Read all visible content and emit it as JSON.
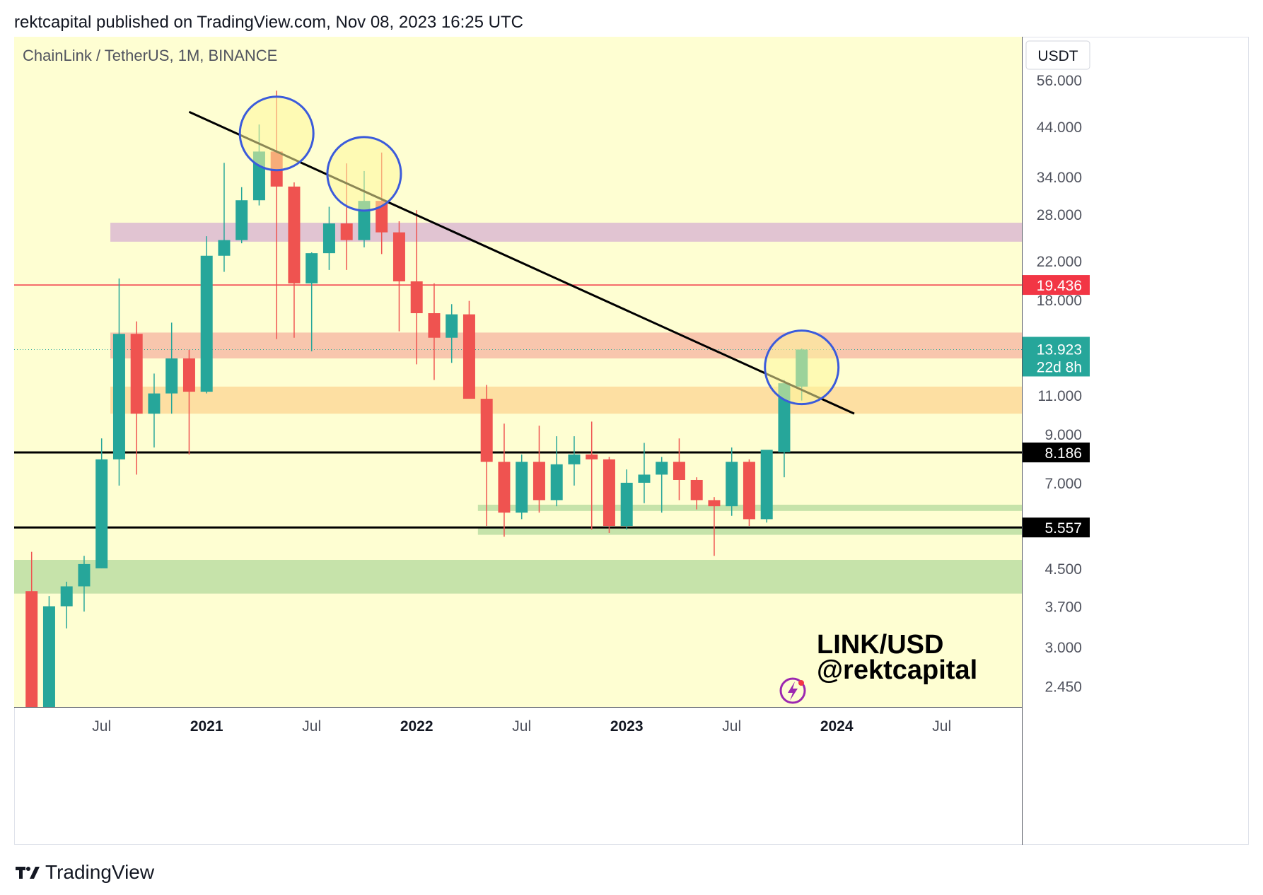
{
  "header": {
    "published": "rektcapital published on TradingView.com, Nov 08, 2023 16:25 UTC"
  },
  "footer": {
    "brand": "TradingView"
  },
  "colors": {
    "background": "#fefed2",
    "up": "#26a69a",
    "down": "#ef5350",
    "trendline": "#000000",
    "circle": "#3b5bdb",
    "zone_purple": "#e1c4d2",
    "zone_salmon": "#f8c6ad",
    "zone_orange": "#fddfa2",
    "zone_green": "#c6e3aa",
    "last_price_tag": "#26a69a",
    "red_level_tag": "#f23645"
  },
  "chart_data": {
    "type": "candlestick",
    "title": "ChainLink / TetherUS, 1M, BINANCE",
    "watermark": [
      "LINK/USD",
      "@rektcapital"
    ],
    "currency": "USDT",
    "y_scale": "log",
    "ylim": [
      2.2,
      70
    ],
    "y_ticks": [
      "56.000",
      "44.000",
      "34.000",
      "28.000",
      "22.000",
      "18.000",
      "11.000",
      "9.000",
      "7.000",
      "4.500",
      "3.700",
      "3.000",
      "2.450"
    ],
    "x_ticks": [
      {
        "label": "Jul",
        "date": "2020-07",
        "bold": false
      },
      {
        "label": "2021",
        "date": "2021-01",
        "bold": true
      },
      {
        "label": "Jul",
        "date": "2021-07",
        "bold": false
      },
      {
        "label": "2022",
        "date": "2022-01",
        "bold": true
      },
      {
        "label": "Jul",
        "date": "2022-07",
        "bold": false
      },
      {
        "label": "2023",
        "date": "2023-01",
        "bold": true
      },
      {
        "label": "Jul",
        "date": "2023-07",
        "bold": false
      },
      {
        "label": "2024",
        "date": "2024-01",
        "bold": true
      },
      {
        "label": "Jul",
        "date": "2024-07",
        "bold": false
      }
    ],
    "candles": [
      {
        "date": "2020-03",
        "o": 4.0,
        "h": 4.9,
        "l": 2.2,
        "c": 2.2
      },
      {
        "date": "2020-04",
        "o": 2.2,
        "h": 3.9,
        "l": 2.2,
        "c": 3.7
      },
      {
        "date": "2020-05",
        "o": 3.7,
        "h": 4.2,
        "l": 3.3,
        "c": 4.1
      },
      {
        "date": "2020-06",
        "o": 4.1,
        "h": 4.8,
        "l": 3.6,
        "c": 4.6
      },
      {
        "date": "2020-07",
        "o": 4.5,
        "h": 8.8,
        "l": 4.5,
        "c": 7.9
      },
      {
        "date": "2020-08",
        "o": 7.9,
        "h": 20.1,
        "l": 6.9,
        "c": 15.1
      },
      {
        "date": "2020-09",
        "o": 15.1,
        "h": 16.1,
        "l": 7.3,
        "c": 10.0
      },
      {
        "date": "2020-10",
        "o": 10.0,
        "h": 12.3,
        "l": 8.4,
        "c": 11.1
      },
      {
        "date": "2020-11",
        "o": 11.1,
        "h": 16.0,
        "l": 10.0,
        "c": 13.3
      },
      {
        "date": "2020-12",
        "o": 13.3,
        "h": 13.9,
        "l": 8.1,
        "c": 11.2
      },
      {
        "date": "2021-01",
        "o": 11.2,
        "h": 25.0,
        "l": 11.1,
        "c": 22.6
      },
      {
        "date": "2021-02",
        "o": 22.6,
        "h": 36.5,
        "l": 20.8,
        "c": 24.5
      },
      {
        "date": "2021-03",
        "o": 24.5,
        "h": 32.2,
        "l": 24.1,
        "c": 30.1
      },
      {
        "date": "2021-04",
        "o": 30.1,
        "h": 44.5,
        "l": 29.3,
        "c": 38.7
      },
      {
        "date": "2021-05",
        "o": 38.7,
        "h": 53.0,
        "l": 14.7,
        "c": 32.3
      },
      {
        "date": "2021-06",
        "o": 32.3,
        "h": 33.0,
        "l": 14.8,
        "c": 19.6
      },
      {
        "date": "2021-07",
        "o": 19.6,
        "h": 23.0,
        "l": 13.8,
        "c": 22.9
      },
      {
        "date": "2021-08",
        "o": 22.9,
        "h": 29.1,
        "l": 21.0,
        "c": 26.7
      },
      {
        "date": "2021-09",
        "o": 26.7,
        "h": 36.4,
        "l": 21.0,
        "c": 24.5
      },
      {
        "date": "2021-10",
        "o": 24.5,
        "h": 35.0,
        "l": 23.6,
        "c": 30.0
      },
      {
        "date": "2021-11",
        "o": 30.0,
        "h": 38.5,
        "l": 22.8,
        "c": 25.5
      },
      {
        "date": "2021-12",
        "o": 25.5,
        "h": 27.0,
        "l": 15.3,
        "c": 19.8
      },
      {
        "date": "2022-01",
        "o": 19.8,
        "h": 28.6,
        "l": 12.9,
        "c": 16.8
      },
      {
        "date": "2022-02",
        "o": 16.8,
        "h": 19.6,
        "l": 11.9,
        "c": 14.8
      },
      {
        "date": "2022-03",
        "o": 14.8,
        "h": 17.6,
        "l": 13.0,
        "c": 16.7
      },
      {
        "date": "2022-04",
        "o": 16.7,
        "h": 17.9,
        "l": 11.0,
        "c": 10.8
      },
      {
        "date": "2022-05",
        "o": 10.8,
        "h": 11.6,
        "l": 5.6,
        "c": 7.8
      },
      {
        "date": "2022-06",
        "o": 7.8,
        "h": 9.5,
        "l": 5.3,
        "c": 6.0
      },
      {
        "date": "2022-07",
        "o": 6.0,
        "h": 8.1,
        "l": 5.8,
        "c": 7.8
      },
      {
        "date": "2022-08",
        "o": 7.8,
        "h": 9.4,
        "l": 6.0,
        "c": 6.4
      },
      {
        "date": "2022-09",
        "o": 6.4,
        "h": 8.9,
        "l": 6.2,
        "c": 7.7
      },
      {
        "date": "2022-10",
        "o": 7.7,
        "h": 8.9,
        "l": 6.9,
        "c": 8.1
      },
      {
        "date": "2022-11",
        "o": 8.1,
        "h": 9.6,
        "l": 5.5,
        "c": 7.9
      },
      {
        "date": "2022-12",
        "o": 7.9,
        "h": 8.0,
        "l": 5.4,
        "c": 5.6
      },
      {
        "date": "2023-01",
        "o": 5.6,
        "h": 7.5,
        "l": 5.5,
        "c": 7.0
      },
      {
        "date": "2023-02",
        "o": 7.0,
        "h": 8.6,
        "l": 6.3,
        "c": 7.3
      },
      {
        "date": "2023-03",
        "o": 7.3,
        "h": 8.0,
        "l": 6.0,
        "c": 7.8
      },
      {
        "date": "2023-04",
        "o": 7.8,
        "h": 8.8,
        "l": 6.4,
        "c": 7.1
      },
      {
        "date": "2023-05",
        "o": 7.1,
        "h": 7.2,
        "l": 6.1,
        "c": 6.4
      },
      {
        "date": "2023-06",
        "o": 6.4,
        "h": 6.5,
        "l": 4.8,
        "c": 6.2
      },
      {
        "date": "2023-07",
        "o": 6.2,
        "h": 8.4,
        "l": 5.9,
        "c": 7.8
      },
      {
        "date": "2023-08",
        "o": 7.8,
        "h": 7.9,
        "l": 5.6,
        "c": 5.8
      },
      {
        "date": "2023-09",
        "o": 5.8,
        "h": 8.1,
        "l": 5.7,
        "c": 8.3
      },
      {
        "date": "2023-10",
        "o": 8.2,
        "h": 11.9,
        "l": 7.2,
        "c": 11.7
      },
      {
        "date": "2023-11",
        "o": 11.5,
        "h": 14.0,
        "l": 10.7,
        "c": 13.923
      }
    ],
    "horizontal_lines": [
      {
        "price": 19.436,
        "label": "19.436",
        "color": "#f23645",
        "width": 1.5,
        "style": "solid"
      },
      {
        "price": 8.186,
        "label": "8.186",
        "color": "#000000",
        "width": 3,
        "style": "solid"
      },
      {
        "price": 5.557,
        "label": "5.557",
        "color": "#000000",
        "width": 3,
        "style": "solid"
      }
    ],
    "last_price": {
      "price": 13.923,
      "label": "13.923",
      "countdown": "22d 8h"
    },
    "zones": [
      {
        "name": "resistance-zone",
        "from": 24.3,
        "to": 26.8,
        "color": "#e1c4d2",
        "start": "2020-08",
        "end": "2025-02"
      },
      {
        "name": "supply-zone",
        "from": 13.3,
        "to": 15.2,
        "color": "#f8c6ad",
        "start": "2020-08",
        "end": "2025-02"
      },
      {
        "name": "breakout-zone",
        "from": 10.0,
        "to": 11.5,
        "color": "#fddfa2",
        "start": "2020-08",
        "end": "2025-02"
      },
      {
        "name": "range-top-zone",
        "from": 6.05,
        "to": 6.25,
        "color": "#c6e3aa",
        "start": "2022-05",
        "end": "2025-02"
      },
      {
        "name": "range-low-zone",
        "from": 5.35,
        "to": 5.55,
        "color": "#c6e3aa",
        "start": "2022-05",
        "end": "2025-02"
      },
      {
        "name": "base-zone",
        "from": 3.95,
        "to": 4.7,
        "color": "#c6e3aa",
        "start": "2020-01",
        "end": "2025-02"
      }
    ],
    "trendline": {
      "from": {
        "date": "2020-12",
        "price": 47.5
      },
      "to": {
        "date": "2024-02",
        "price": 10.0
      }
    },
    "circles": [
      {
        "date": "2021-05",
        "price": 42.5
      },
      {
        "date": "2021-10",
        "price": 34.5
      },
      {
        "date": "2023-11",
        "price": 12.7
      }
    ]
  }
}
